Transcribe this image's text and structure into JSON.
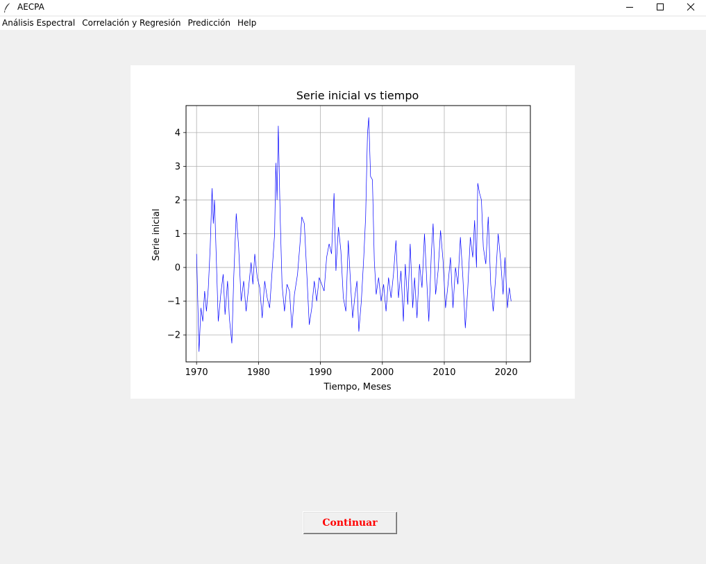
{
  "window": {
    "title": "AECPA",
    "icon": "feather-icon",
    "controls": [
      "minimize-icon",
      "maximize-icon",
      "close-icon"
    ]
  },
  "menu": {
    "items": [
      "Análisis Espectral",
      "Correlación y Regresión",
      "Predicción",
      "Help"
    ]
  },
  "chart_data": {
    "type": "line",
    "title": "Serie inicial vs tiempo",
    "xlabel": "Tiempo, Meses",
    "ylabel": "Serie inicial",
    "xlim": [
      1968.3,
      2023.9
    ],
    "ylim": [
      -2.8,
      4.8
    ],
    "xticks": [
      1970,
      1980,
      1990,
      2000,
      2010,
      2020
    ],
    "yticks": [
      -2,
      -1,
      0,
      1,
      2,
      3,
      4
    ],
    "grid": true,
    "series": [
      {
        "color": "#0000ff",
        "points": [
          [
            1970.0,
            0.4
          ],
          [
            1970.2,
            -1.0
          ],
          [
            1970.4,
            -2.5
          ],
          [
            1970.7,
            -1.2
          ],
          [
            1971.0,
            -1.6
          ],
          [
            1971.3,
            -0.7
          ],
          [
            1971.6,
            -1.3
          ],
          [
            1971.9,
            -0.6
          ],
          [
            1972.2,
            0.6
          ],
          [
            1972.5,
            2.35
          ],
          [
            1972.7,
            1.3
          ],
          [
            1972.9,
            2.0
          ],
          [
            1973.2,
            0.2
          ],
          [
            1973.5,
            -1.6
          ],
          [
            1973.9,
            -0.8
          ],
          [
            1974.3,
            -0.2
          ],
          [
            1974.6,
            -1.4
          ],
          [
            1975.0,
            -0.4
          ],
          [
            1975.3,
            -1.5
          ],
          [
            1975.7,
            -2.25
          ],
          [
            1976.0,
            -0.3
          ],
          [
            1976.4,
            1.6
          ],
          [
            1976.8,
            0.6
          ],
          [
            1977.2,
            -1.0
          ],
          [
            1977.6,
            -0.4
          ],
          [
            1978.0,
            -1.3
          ],
          [
            1978.4,
            -0.6
          ],
          [
            1978.8,
            0.15
          ],
          [
            1979.1,
            -0.5
          ],
          [
            1979.4,
            0.4
          ],
          [
            1979.8,
            -0.3
          ],
          [
            1980.2,
            -0.6
          ],
          [
            1980.6,
            -1.5
          ],
          [
            1981.0,
            -0.4
          ],
          [
            1981.4,
            -0.9
          ],
          [
            1981.8,
            -1.2
          ],
          [
            1982.2,
            -0.1
          ],
          [
            1982.6,
            1.0
          ],
          [
            1982.8,
            3.1
          ],
          [
            1983.0,
            2.0
          ],
          [
            1983.2,
            4.2
          ],
          [
            1983.5,
            1.5
          ],
          [
            1983.8,
            -0.5
          ],
          [
            1984.2,
            -1.3
          ],
          [
            1984.6,
            -0.5
          ],
          [
            1985.0,
            -0.7
          ],
          [
            1985.4,
            -1.8
          ],
          [
            1985.8,
            -0.8
          ],
          [
            1986.3,
            -0.2
          ],
          [
            1986.7,
            0.7
          ],
          [
            1987.0,
            1.5
          ],
          [
            1987.4,
            1.3
          ],
          [
            1987.8,
            -0.2
          ],
          [
            1988.2,
            -1.7
          ],
          [
            1988.6,
            -1.2
          ],
          [
            1989.0,
            -0.4
          ],
          [
            1989.4,
            -1.0
          ],
          [
            1989.8,
            -0.3
          ],
          [
            1990.2,
            -0.5
          ],
          [
            1990.6,
            -0.7
          ],
          [
            1991.0,
            0.3
          ],
          [
            1991.4,
            0.7
          ],
          [
            1991.8,
            0.4
          ],
          [
            1992.2,
            2.2
          ],
          [
            1992.5,
            -0.1
          ],
          [
            1992.9,
            1.2
          ],
          [
            1993.3,
            0.5
          ],
          [
            1993.7,
            -0.9
          ],
          [
            1994.1,
            -1.3
          ],
          [
            1994.5,
            0.8
          ],
          [
            1994.9,
            -0.6
          ],
          [
            1995.2,
            -1.5
          ],
          [
            1995.6,
            -0.8
          ],
          [
            1995.9,
            -0.4
          ],
          [
            1996.2,
            -1.9
          ],
          [
            1996.6,
            -1.0
          ],
          [
            1997.0,
            0.3
          ],
          [
            1997.3,
            1.5
          ],
          [
            1997.6,
            4.0
          ],
          [
            1997.8,
            4.45
          ],
          [
            1998.1,
            2.7
          ],
          [
            1998.4,
            2.6
          ],
          [
            1998.7,
            0.2
          ],
          [
            1999.0,
            -0.8
          ],
          [
            1999.4,
            -0.3
          ],
          [
            1999.8,
            -1.0
          ],
          [
            2000.2,
            -0.5
          ],
          [
            2000.6,
            -1.3
          ],
          [
            2001.0,
            -0.3
          ],
          [
            2001.4,
            -0.9
          ],
          [
            2001.8,
            -0.2
          ],
          [
            2002.2,
            0.8
          ],
          [
            2002.6,
            -0.9
          ],
          [
            2003.0,
            -0.1
          ],
          [
            2003.4,
            -1.6
          ],
          [
            2003.7,
            0.1
          ],
          [
            2004.1,
            -1.1
          ],
          [
            2004.5,
            0.7
          ],
          [
            2004.9,
            -1.2
          ],
          [
            2005.2,
            -0.3
          ],
          [
            2005.6,
            -1.5
          ],
          [
            2006.0,
            0.1
          ],
          [
            2006.4,
            -0.6
          ],
          [
            2006.8,
            1.0
          ],
          [
            2007.2,
            -0.5
          ],
          [
            2007.5,
            -1.6
          ],
          [
            2007.9,
            0.4
          ],
          [
            2008.2,
            1.3
          ],
          [
            2008.6,
            -0.8
          ],
          [
            2009.0,
            -0.1
          ],
          [
            2009.4,
            1.1
          ],
          [
            2009.8,
            0.2
          ],
          [
            2010.2,
            -1.2
          ],
          [
            2010.6,
            -0.5
          ],
          [
            2011.0,
            0.3
          ],
          [
            2011.4,
            -1.2
          ],
          [
            2011.8,
            0.0
          ],
          [
            2012.2,
            -0.5
          ],
          [
            2012.6,
            0.9
          ],
          [
            2013.0,
            -0.3
          ],
          [
            2013.4,
            -1.8
          ],
          [
            2013.8,
            -0.6
          ],
          [
            2014.2,
            0.9
          ],
          [
            2014.6,
            0.3
          ],
          [
            2014.9,
            1.4
          ],
          [
            2015.2,
            0.0
          ],
          [
            2015.4,
            2.5
          ],
          [
            2015.7,
            2.2
          ],
          [
            2016.0,
            2.0
          ],
          [
            2016.3,
            0.6
          ],
          [
            2016.7,
            0.1
          ],
          [
            2017.1,
            1.5
          ],
          [
            2017.5,
            -0.5
          ],
          [
            2017.9,
            -1.3
          ],
          [
            2018.3,
            -0.3
          ],
          [
            2018.7,
            1.0
          ],
          [
            2019.1,
            0.2
          ],
          [
            2019.5,
            -0.8
          ],
          [
            2019.8,
            0.3
          ],
          [
            2020.2,
            -1.2
          ],
          [
            2020.5,
            -0.6
          ],
          [
            2020.8,
            -1.0
          ]
        ]
      }
    ]
  },
  "buttons": {
    "continue_label": "Continuar"
  }
}
